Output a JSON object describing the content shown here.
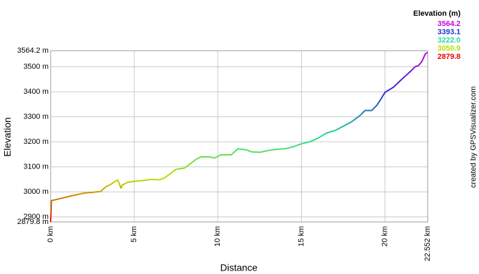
{
  "chart_data": {
    "type": "line",
    "x_label": "Distance",
    "y_label": "Elevation",
    "credit": "created by GPSVisualizer.com",
    "legend_title": "Elevation (m)",
    "color_scale": [
      {
        "value": 3564.2,
        "label": "3564.2",
        "color": "#cc00dd"
      },
      {
        "value": 3393.1,
        "label": "3393.1",
        "color": "#2233cc"
      },
      {
        "value": 3222.0,
        "label": "3222.0",
        "color": "#22dd99"
      },
      {
        "value": 3050.9,
        "label": "3050.9",
        "color": "#bbdd00"
      },
      {
        "value": 2879.8,
        "label": "2879.8",
        "color": "#ee0000"
      }
    ],
    "xlim": [
      0,
      22.552
    ],
    "xticks": [
      {
        "value": 0,
        "label": "0 km"
      },
      {
        "value": 5,
        "label": "5 km"
      },
      {
        "value": 10,
        "label": "10 km"
      },
      {
        "value": 15,
        "label": "15 km"
      },
      {
        "value": 20,
        "label": "20 km"
      },
      {
        "value": 22.552,
        "label": "22.552 km"
      }
    ],
    "ylim": [
      2879.8,
      3564.2
    ],
    "yticks": [
      {
        "value": 2879.8,
        "label": "2879.8 m"
      },
      {
        "value": 2900,
        "label": "2900 m"
      },
      {
        "value": 3000,
        "label": "3000 m"
      },
      {
        "value": 3100,
        "label": "3100 m"
      },
      {
        "value": 3200,
        "label": "3200 m"
      },
      {
        "value": 3300,
        "label": "3300 m"
      },
      {
        "value": 3400,
        "label": "3400 m"
      },
      {
        "value": 3500,
        "label": "3500 m"
      },
      {
        "value": 3564.2,
        "label": "3564.2 m"
      }
    ],
    "grid": true,
    "x": [
      0,
      0.05,
      0.5,
      1,
      1.5,
      2,
      2.5,
      3,
      3.3,
      3.6,
      4.0,
      4.1,
      4.2,
      4.3,
      4.6,
      5,
      5.5,
      6,
      6.5,
      6.8,
      7,
      7.5,
      8,
      8.3,
      8.7,
      9,
      9.5,
      9.8,
      10.2,
      10.8,
      11,
      11.2,
      11.7,
      12,
      12.5,
      13,
      13.5,
      14,
      14.5,
      15,
      15.5,
      16,
      16.5,
      17,
      17.5,
      18,
      18.5,
      18.8,
      19.2,
      19.5,
      19.7,
      20,
      20.5,
      21,
      21.5,
      21.8,
      22,
      22.2,
      22.4,
      22.552
    ],
    "values": [
      2879.8,
      2965,
      2972,
      2980,
      2988,
      2995,
      2998,
      3002,
      3020,
      3030,
      3048,
      3035,
      3015,
      3028,
      3038,
      3042,
      3045,
      3050,
      3048,
      3055,
      3065,
      3090,
      3095,
      3110,
      3130,
      3140,
      3140,
      3135,
      3148,
      3148,
      3160,
      3172,
      3168,
      3160,
      3158,
      3165,
      3170,
      3172,
      3180,
      3192,
      3200,
      3215,
      3235,
      3245,
      3262,
      3280,
      3305,
      3325,
      3325,
      3345,
      3365,
      3398,
      3418,
      3450,
      3480,
      3500,
      3505,
      3520,
      3550,
      3558
    ]
  }
}
